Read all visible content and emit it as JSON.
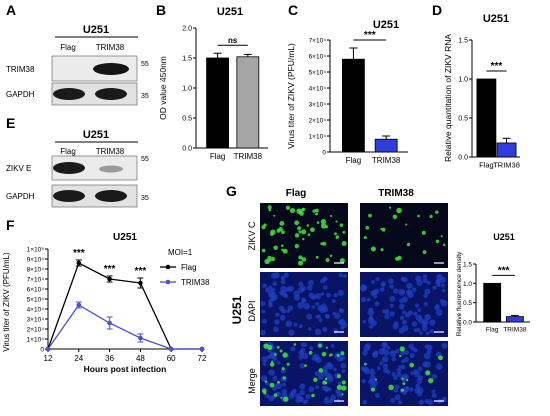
{
  "panels": {
    "A": {
      "letter": "A",
      "title": "U251",
      "lanes": [
        "Flag",
        "TRIM38"
      ],
      "rows": [
        {
          "label": "TRIM38",
          "marker": "55"
        },
        {
          "label": "GAPDH",
          "marker": "35"
        }
      ]
    },
    "E": {
      "letter": "E",
      "title": "U251",
      "lanes": [
        "Flag",
        "TRIM38"
      ],
      "rows": [
        {
          "label": "ZIKV E",
          "marker": "55"
        },
        {
          "label": "GAPDH",
          "marker": "35"
        }
      ]
    },
    "G": {
      "letter": "G",
      "columns": [
        "Flag",
        "TRIM38"
      ],
      "side_label": "U251",
      "rows": [
        "ZIKV C",
        "DAPI",
        "Merge"
      ]
    }
  },
  "colors": {
    "flag": "#000000",
    "trim38_gray": "#a6a6a6",
    "trim38_blue": "#2f3ddb",
    "line_blue": "#4a4fd6",
    "micro_bg": "#05071a",
    "dapi": "#1e3fbf",
    "zikv": "#3ddc3a"
  },
  "chart_data": [
    {
      "id": "B",
      "letter": "B",
      "type": "bar",
      "title": "U251",
      "ylabel": "OD value 450nm",
      "categories": [
        "Flag",
        "TRIM38"
      ],
      "values": [
        1.5,
        1.52
      ],
      "errors": [
        0.08,
        0.04
      ],
      "ylim": [
        0,
        2.0
      ],
      "yticks": [
        "0.0",
        "0.5",
        "1.0",
        "1.5",
        "2.0"
      ],
      "significance": "ns"
    },
    {
      "id": "C",
      "letter": "C",
      "type": "bar",
      "title": "U251",
      "ylabel": "Virus titer of ZIKV (PFU/mL)",
      "categories": [
        "Flag",
        "TRIM38"
      ],
      "values": [
        5.8,
        0.8
      ],
      "errors": [
        0.7,
        0.2
      ],
      "ylim": [
        0,
        7
      ],
      "yticks": [
        "0",
        "1×10⁴",
        "2×10⁴",
        "3×10⁴",
        "4×10⁴",
        "5×10⁴",
        "6×10⁴",
        "7×10⁴"
      ],
      "significance": "***"
    },
    {
      "id": "D",
      "letter": "D",
      "type": "bar",
      "title": "U251",
      "ylabel": "Relative quantitation of ZIKV RNA",
      "categories": [
        "Flag",
        "TRIM38"
      ],
      "values": [
        1.0,
        0.18
      ],
      "errors": [
        0,
        0.06
      ],
      "ylim": [
        0,
        1.5
      ],
      "yticks": [
        "0.0",
        "0.5",
        "1.0",
        "1.5"
      ],
      "significance": "***"
    },
    {
      "id": "F",
      "letter": "F",
      "type": "line",
      "title": "U251",
      "xlabel": "Hours post infection",
      "ylabel": "Virus titer of ZIKV (PFU/mL)",
      "legend_title": "MOI=1",
      "x": [
        12,
        24,
        36,
        48,
        60,
        72
      ],
      "xticks": [
        "12",
        "24",
        "36",
        "48",
        "60",
        "72"
      ],
      "ylim": [
        0,
        10
      ],
      "yticks": [
        "0",
        "1×10⁴",
        "2×10⁴",
        "3×10⁴",
        "4×10⁴",
        "5×10⁴",
        "6×10⁴",
        "7×10⁴",
        "8×10⁴",
        "9×10⁴",
        "1×10⁵"
      ],
      "series": [
        {
          "name": "Flag",
          "values": [
            0,
            8.6,
            7.0,
            6.6,
            0,
            0
          ],
          "errors": [
            0,
            0.3,
            0.3,
            0.5,
            0,
            0
          ]
        },
        {
          "name": "TRIM38",
          "values": [
            0,
            4.4,
            2.6,
            1.1,
            0,
            0
          ],
          "errors": [
            0,
            0.3,
            0.6,
            0.4,
            0,
            0
          ]
        }
      ],
      "significance": [
        "***",
        "***",
        "***"
      ]
    },
    {
      "id": "G2",
      "type": "bar",
      "title": "U251",
      "ylabel": "Relative fluorescence density",
      "categories": [
        "Flag",
        "TRIM38"
      ],
      "values": [
        1.0,
        0.14
      ],
      "errors": [
        0,
        0.03
      ],
      "ylim": [
        0,
        1.5
      ],
      "yticks": [
        "0.0",
        "0.5",
        "1.0",
        "1.5"
      ],
      "significance": "***"
    }
  ]
}
